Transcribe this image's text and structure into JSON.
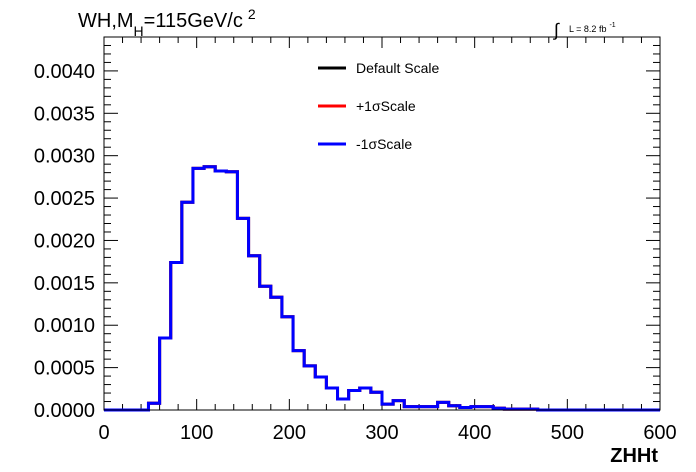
{
  "chart_data": {
    "type": "line",
    "title": "",
    "xlabel": "ZHHt",
    "ylabel": "",
    "xlim": [
      0,
      600
    ],
    "ylim": [
      0,
      0.0044
    ],
    "x_ticks": [
      "0",
      "100",
      "200",
      "300",
      "400",
      "500",
      "600"
    ],
    "y_ticks": [
      "0.0000",
      "0.0005",
      "0.0010",
      "0.0015",
      "0.0020",
      "0.0025",
      "0.0030",
      "0.0035",
      "0.0040"
    ],
    "bin_edges": [
      0,
      12,
      24,
      36,
      48,
      60,
      72,
      84,
      96,
      108,
      120,
      132,
      144,
      156,
      168,
      180,
      192,
      204,
      216,
      228,
      240,
      252,
      264,
      276,
      288,
      300,
      312,
      324,
      336,
      348,
      360,
      372,
      384,
      396,
      408,
      420,
      432,
      444,
      456,
      468,
      480,
      492,
      504,
      516,
      528,
      540,
      552,
      564,
      576,
      588,
      600
    ],
    "series": [
      {
        "name": "Default Scale",
        "color": "#000000",
        "values": [
          0,
          0,
          0,
          0,
          8e-05,
          0.00085,
          0.00174,
          0.00245,
          0.00285,
          0.00287,
          0.00282,
          0.00281,
          0.00226,
          0.00182,
          0.00146,
          0.00133,
          0.0011,
          0.0007,
          0.00052,
          0.00039,
          0.00026,
          0.00013,
          0.00023,
          0.00026,
          0.00021,
          7e-05,
          0.00011,
          4e-05,
          4e-05,
          4e-05,
          9e-05,
          5e-05,
          3e-05,
          4e-05,
          4e-05,
          2e-05,
          1e-05,
          1e-05,
          1e-05,
          0,
          0,
          0,
          0,
          0,
          0,
          0,
          0,
          0,
          0,
          0
        ]
      },
      {
        "name": "+1σScale",
        "color": "#ff0000",
        "values": [
          0,
          0,
          0,
          0,
          8e-05,
          0.00085,
          0.00174,
          0.00245,
          0.00285,
          0.00287,
          0.00282,
          0.00281,
          0.00226,
          0.00182,
          0.00146,
          0.00133,
          0.0011,
          0.0007,
          0.00052,
          0.00039,
          0.00026,
          0.00013,
          0.00023,
          0.00026,
          0.00021,
          7e-05,
          0.00011,
          4e-05,
          4e-05,
          4e-05,
          9e-05,
          5e-05,
          3e-05,
          4e-05,
          4e-05,
          2e-05,
          1e-05,
          1e-05,
          1e-05,
          0,
          0,
          0,
          0,
          0,
          0,
          0,
          0,
          0,
          0,
          0
        ]
      },
      {
        "name": "-1σScale",
        "color": "#0000ff",
        "values": [
          0,
          0,
          0,
          0,
          8e-05,
          0.00085,
          0.00174,
          0.00245,
          0.00285,
          0.00287,
          0.00282,
          0.00281,
          0.00226,
          0.00182,
          0.00146,
          0.00133,
          0.0011,
          0.0007,
          0.00052,
          0.00039,
          0.00026,
          0.00013,
          0.00023,
          0.00026,
          0.00021,
          7e-05,
          0.00011,
          4e-05,
          4e-05,
          4e-05,
          9e-05,
          5e-05,
          3e-05,
          4e-05,
          4e-05,
          2e-05,
          1e-05,
          1e-05,
          1e-05,
          0,
          0,
          0,
          0,
          0,
          0,
          0,
          0,
          0,
          0,
          0
        ]
      }
    ],
    "legend_position": "top-center",
    "grid": false,
    "annotations": {
      "top_left_main": "WH,M",
      "top_left_sub": "H",
      "top_left_rest": "=115GeV/c",
      "top_left_sup": "2",
      "lumi_integral": "∫",
      "lumi_text": "L = 8.2 fb",
      "lumi_sup": "-1"
    }
  }
}
